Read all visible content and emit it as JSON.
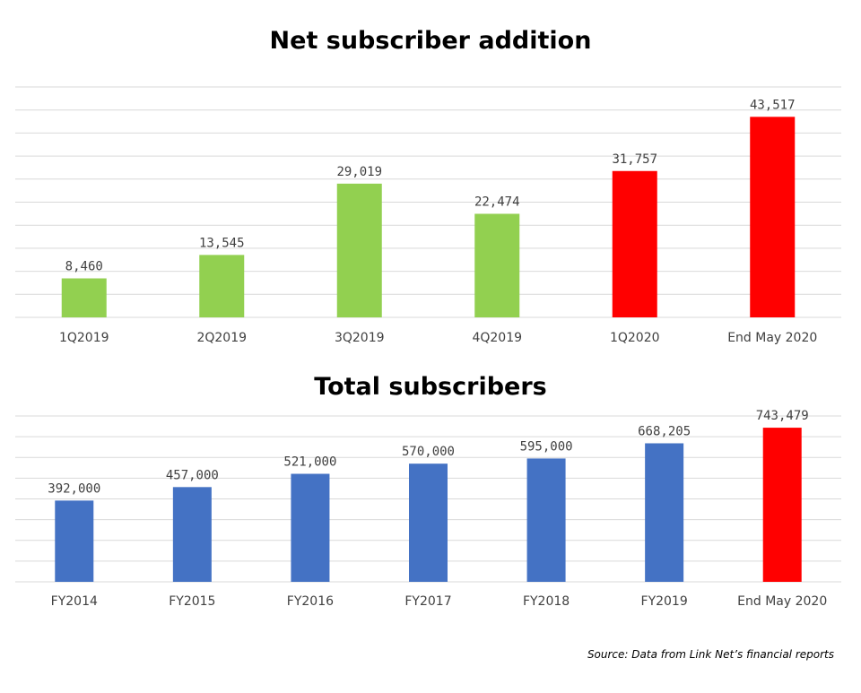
{
  "chart_data": [
    {
      "type": "bar",
      "title": "Net subscriber addition",
      "categories": [
        "1Q2019",
        "2Q2019",
        "3Q2019",
        "4Q2019",
        "1Q2020",
        "End May 2020"
      ],
      "values": [
        8460,
        13545,
        29019,
        22474,
        31757,
        43517
      ],
      "value_labels": [
        "8,460",
        "13,545",
        "29,019",
        "22,474",
        "31,757",
        "43,517"
      ],
      "bar_colors": [
        "#92d050",
        "#92d050",
        "#92d050",
        "#92d050",
        "#ff0000",
        "#ff0000"
      ],
      "ylim": [
        0,
        50000
      ],
      "grid": true,
      "xlabel": "",
      "ylabel": ""
    },
    {
      "type": "bar",
      "title": "Total subscribers",
      "categories": [
        "FY2014",
        "FY2015",
        "FY2016",
        "FY2017",
        "FY2018",
        "FY2019",
        "End May 2020"
      ],
      "values": [
        392000,
        457000,
        521000,
        570000,
        595000,
        668205,
        743479
      ],
      "value_labels": [
        "392,000",
        "457,000",
        "521,000",
        "570,000",
        "595,000",
        "668,205",
        "743,479"
      ],
      "bar_colors": [
        "#4472c4",
        "#4472c4",
        "#4472c4",
        "#4472c4",
        "#4472c4",
        "#4472c4",
        "#ff0000"
      ],
      "ylim": [
        0,
        800000
      ],
      "grid": true,
      "xlabel": "",
      "ylabel": ""
    }
  ],
  "source": "Source: Data from Link Net’s financial reports"
}
